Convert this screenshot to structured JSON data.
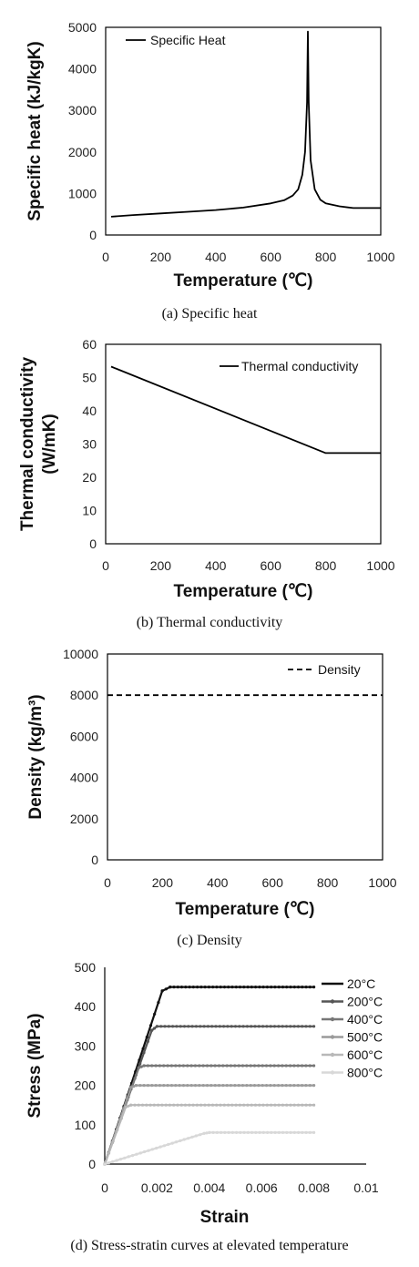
{
  "captions": {
    "a": "(a) Specific heat",
    "b": "(b) Thermal conductivity",
    "c": "(c) Density",
    "d": "(d) Stress-stratin curves at elevated temperature"
  },
  "chart_data": [
    {
      "type": "line",
      "xlabel": "Temperature (℃)",
      "ylabel": "Specific heat (kJ/kgK)",
      "xlim": [
        0,
        1000
      ],
      "ylim": [
        0,
        5000
      ],
      "xticks": [
        0,
        200,
        400,
        600,
        800,
        1000
      ],
      "yticks": [
        0,
        1000,
        2000,
        3000,
        4000,
        5000
      ],
      "legend_position": "top-left",
      "series": [
        {
          "name": "Specific Heat",
          "color": "#000000",
          "dash": "solid",
          "x": [
            20,
            100,
            200,
            300,
            400,
            500,
            600,
            650,
            680,
            700,
            715,
            725,
            732,
            735,
            738,
            745,
            760,
            780,
            800,
            850,
            900,
            1000
          ],
          "y": [
            440,
            480,
            520,
            560,
            600,
            660,
            760,
            840,
            950,
            1100,
            1450,
            2000,
            3200,
            4900,
            3200,
            1800,
            1100,
            850,
            760,
            690,
            650,
            650
          ]
        }
      ]
    },
    {
      "type": "line",
      "xlabel": "Temperature (℃)",
      "ylabel": "Thermal conductivity (W/mK)",
      "ylabel_lines": [
        "Thermal conductivity",
        "(W/mK)"
      ],
      "xlim": [
        0,
        1000
      ],
      "ylim": [
        0,
        60
      ],
      "xticks": [
        0,
        200,
        400,
        600,
        800,
        1000
      ],
      "yticks": [
        0,
        10,
        20,
        30,
        40,
        50,
        60
      ],
      "legend_position": "top-right",
      "series": [
        {
          "name": "Thermal conductivity",
          "color": "#000000",
          "dash": "solid",
          "x": [
            20,
            800,
            1000
          ],
          "y": [
            53.3,
            27.3,
            27.3
          ]
        }
      ]
    },
    {
      "type": "line",
      "xlabel": "Temperature (℃)",
      "ylabel": "Density (kg/m³)",
      "xlim": [
        0,
        1000
      ],
      "ylim": [
        0,
        10000
      ],
      "xticks": [
        0,
        200,
        400,
        600,
        800,
        1000
      ],
      "yticks": [
        0,
        2000,
        4000,
        6000,
        8000,
        10000
      ],
      "legend_position": "top-right",
      "series": [
        {
          "name": "Density",
          "color": "#000000",
          "dash": "dashed",
          "x": [
            0,
            1000
          ],
          "y": [
            8000,
            8000
          ]
        }
      ]
    },
    {
      "type": "line",
      "xlabel": "Strain",
      "ylabel": "Stress (MPa)",
      "xlim": [
        0,
        0.01
      ],
      "ylim": [
        0,
        500
      ],
      "xticks": [
        0,
        0.002,
        0.004,
        0.006,
        0.008,
        0.01
      ],
      "xtick_labels": [
        "0",
        "0.002",
        "0.004",
        "0.006",
        "0.008",
        "0.01"
      ],
      "yticks": [
        0,
        100,
        200,
        300,
        400,
        500
      ],
      "legend_position": "right",
      "series": [
        {
          "name": "20°C",
          "color": "#111111",
          "x": [
            0,
            0.0022,
            0.0025,
            0.008
          ],
          "y": [
            0,
            440,
            450,
            450
          ]
        },
        {
          "name": "200°C",
          "color": "#555555",
          "x": [
            0,
            0.0018,
            0.002,
            0.008
          ],
          "y": [
            0,
            340,
            350,
            350
          ]
        },
        {
          "name": "400°C",
          "color": "#777777",
          "x": [
            0,
            0.0013,
            0.0015,
            0.008
          ],
          "y": [
            0,
            245,
            250,
            250
          ]
        },
        {
          "name": "500°C",
          "color": "#9a9a9a",
          "x": [
            0,
            0.001,
            0.0012,
            0.008
          ],
          "y": [
            0,
            195,
            200,
            200
          ]
        },
        {
          "name": "600°C",
          "color": "#b8b8b8",
          "x": [
            0,
            0.0008,
            0.001,
            0.008
          ],
          "y": [
            0,
            145,
            150,
            150
          ]
        },
        {
          "name": "800°C",
          "color": "#d8d8d8",
          "x": [
            0,
            0.0038,
            0.004,
            0.008
          ],
          "y": [
            0,
            78,
            80,
            80
          ]
        }
      ]
    }
  ]
}
